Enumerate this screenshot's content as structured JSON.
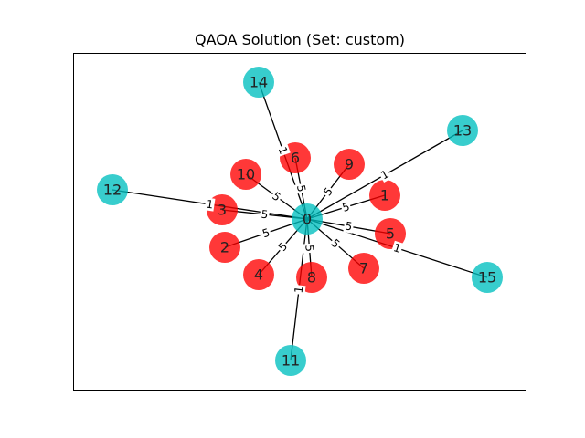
{
  "title": "QAOA Solution (Set: custom)",
  "colors": {
    "set_a": "#ff0000",
    "set_b": "#00bfbf",
    "edge": "#000000",
    "frame": "#000000"
  },
  "nodes": [
    {
      "id": "0",
      "set": "b"
    },
    {
      "id": "1",
      "set": "a"
    },
    {
      "id": "2",
      "set": "a"
    },
    {
      "id": "3",
      "set": "a"
    },
    {
      "id": "4",
      "set": "a"
    },
    {
      "id": "5",
      "set": "a"
    },
    {
      "id": "6",
      "set": "a"
    },
    {
      "id": "7",
      "set": "a"
    },
    {
      "id": "8",
      "set": "a"
    },
    {
      "id": "9",
      "set": "a"
    },
    {
      "id": "10",
      "set": "a"
    },
    {
      "id": "11",
      "set": "b"
    },
    {
      "id": "12",
      "set": "b"
    },
    {
      "id": "13",
      "set": "b"
    },
    {
      "id": "14",
      "set": "b"
    },
    {
      "id": "15",
      "set": "b"
    }
  ],
  "edges": [
    {
      "source": "0",
      "target": "1",
      "weight": "5"
    },
    {
      "source": "0",
      "target": "2",
      "weight": "5"
    },
    {
      "source": "0",
      "target": "3",
      "weight": "5"
    },
    {
      "source": "0",
      "target": "4",
      "weight": "5"
    },
    {
      "source": "0",
      "target": "5",
      "weight": "5"
    },
    {
      "source": "0",
      "target": "6",
      "weight": "5"
    },
    {
      "source": "0",
      "target": "7",
      "weight": "5"
    },
    {
      "source": "0",
      "target": "8",
      "weight": "5"
    },
    {
      "source": "0",
      "target": "9",
      "weight": "5"
    },
    {
      "source": "0",
      "target": "10",
      "weight": "5"
    },
    {
      "source": "0",
      "target": "11",
      "weight": "1"
    },
    {
      "source": "0",
      "target": "12",
      "weight": "1"
    },
    {
      "source": "0",
      "target": "13",
      "weight": "1"
    },
    {
      "source": "0",
      "target": "14",
      "weight": "1"
    },
    {
      "source": "0",
      "target": "15",
      "weight": "1"
    }
  ]
}
